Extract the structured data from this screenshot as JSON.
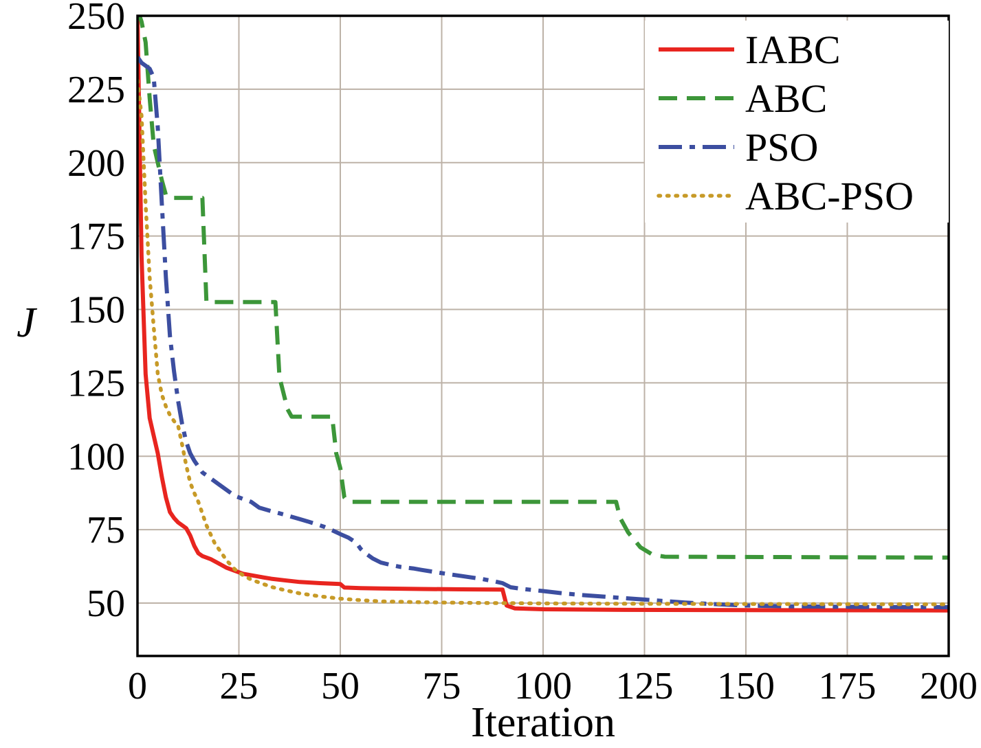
{
  "figure": {
    "background": "#ffffff"
  },
  "chart_data": {
    "type": "line",
    "title": "",
    "xlabel": "Iteration",
    "ylabel": "J",
    "xlim": [
      0,
      200
    ],
    "ylim": [
      32,
      250
    ],
    "x_ticks": [
      0,
      25,
      50,
      75,
      100,
      125,
      150,
      175,
      200
    ],
    "y_ticks": [
      50,
      75,
      100,
      125,
      150,
      175,
      200,
      225,
      250
    ],
    "grid": true,
    "grid_color": "#bdb2a7",
    "axis_color": "#000000",
    "legend_position": "top-right",
    "series": [
      {
        "name": "IABC",
        "color": "#e8251f",
        "style": "solid",
        "points": [
          [
            0,
            250
          ],
          [
            1,
            168
          ],
          [
            2,
            128
          ],
          [
            3,
            113
          ],
          [
            4,
            107
          ],
          [
            5,
            101
          ],
          [
            6,
            93
          ],
          [
            7,
            86
          ],
          [
            8,
            81
          ],
          [
            9,
            79
          ],
          [
            10,
            77.5
          ],
          [
            12,
            75.5
          ],
          [
            13,
            73
          ],
          [
            14,
            69.5
          ],
          [
            15,
            67
          ],
          [
            16,
            66
          ],
          [
            18,
            65
          ],
          [
            20,
            63.5
          ],
          [
            22,
            62
          ],
          [
            24,
            61
          ],
          [
            26,
            60
          ],
          [
            28,
            59.5
          ],
          [
            30,
            59
          ],
          [
            33,
            58.3
          ],
          [
            36,
            57.8
          ],
          [
            40,
            57.2
          ],
          [
            45,
            56.8
          ],
          [
            50,
            56.5
          ],
          [
            51,
            55.3
          ],
          [
            55,
            55.1
          ],
          [
            60,
            55
          ],
          [
            70,
            54.8
          ],
          [
            80,
            54.7
          ],
          [
            90,
            54.6
          ],
          [
            91,
            49.2
          ],
          [
            93,
            48.2
          ],
          [
            100,
            47.9
          ],
          [
            120,
            47.7
          ],
          [
            150,
            47.6
          ],
          [
            200,
            47.5
          ]
        ]
      },
      {
        "name": "ABC",
        "color": "#3c9639",
        "style": "dashed",
        "points": [
          [
            0,
            252
          ],
          [
            1,
            248
          ],
          [
            2,
            241
          ],
          [
            3,
            222
          ],
          [
            4,
            206
          ],
          [
            5,
            200
          ],
          [
            6,
            194
          ],
          [
            7,
            189
          ],
          [
            8,
            188
          ],
          [
            16,
            188
          ],
          [
            17,
            152.5
          ],
          [
            34,
            152.5
          ],
          [
            35,
            127
          ],
          [
            37,
            116
          ],
          [
            38,
            113.5
          ],
          [
            48,
            113.5
          ],
          [
            49,
            101
          ],
          [
            50,
            96
          ],
          [
            51,
            86
          ],
          [
            52,
            84.5
          ],
          [
            118,
            84.5
          ],
          [
            119,
            79
          ],
          [
            121,
            74
          ],
          [
            124,
            69
          ],
          [
            127,
            66.5
          ],
          [
            130,
            65.8
          ],
          [
            200,
            65.5
          ]
        ]
      },
      {
        "name": "PSO",
        "color": "#3c4ea0",
        "style": "dashdot",
        "points": [
          [
            0,
            236
          ],
          [
            1,
            234
          ],
          [
            2,
            233
          ],
          [
            3,
            232
          ],
          [
            4,
            229
          ],
          [
            5,
            212
          ],
          [
            6,
            186
          ],
          [
            7,
            161
          ],
          [
            8,
            141
          ],
          [
            9,
            129
          ],
          [
            10,
            119
          ],
          [
            11,
            111
          ],
          [
            12,
            105
          ],
          [
            13,
            101
          ],
          [
            14,
            98.5
          ],
          [
            15,
            96.5
          ],
          [
            16,
            94.5
          ],
          [
            18,
            92.5
          ],
          [
            20,
            90.5
          ],
          [
            22,
            88.5
          ],
          [
            24,
            86.5
          ],
          [
            26,
            85.5
          ],
          [
            28,
            84.5
          ],
          [
            30,
            82.5
          ],
          [
            33,
            81.3
          ],
          [
            36,
            80.2
          ],
          [
            38,
            79.4
          ],
          [
            40,
            78.6
          ],
          [
            42,
            77.8
          ],
          [
            44,
            76.9
          ],
          [
            46,
            76
          ],
          [
            48,
            74.8
          ],
          [
            50,
            73.5
          ],
          [
            52,
            72.3
          ],
          [
            54,
            70.5
          ],
          [
            55,
            68.5
          ],
          [
            56,
            67.2
          ],
          [
            58,
            65.2
          ],
          [
            60,
            63.8
          ],
          [
            63,
            62.8
          ],
          [
            65,
            62.3
          ],
          [
            68,
            61.8
          ],
          [
            70,
            61.3
          ],
          [
            75,
            60.2
          ],
          [
            80,
            59.2
          ],
          [
            85,
            58.2
          ],
          [
            88,
            57.4
          ],
          [
            90,
            56.8
          ],
          [
            92,
            55.4
          ],
          [
            95,
            54.8
          ],
          [
            100,
            54.1
          ],
          [
            105,
            53.3
          ],
          [
            110,
            52.7
          ],
          [
            115,
            52.2
          ],
          [
            120,
            51.7
          ],
          [
            125,
            51.2
          ],
          [
            130,
            50.7
          ],
          [
            135,
            50.2
          ],
          [
            140,
            49.8
          ],
          [
            150,
            49.2
          ],
          [
            160,
            48.9
          ],
          [
            170,
            48.8
          ],
          [
            180,
            48.7
          ],
          [
            200,
            48.6
          ]
        ]
      },
      {
        "name": "ABC-PSO",
        "color": "#c79a27",
        "style": "dotted",
        "points": [
          [
            0,
            228
          ],
          [
            1,
            216
          ],
          [
            2,
            186
          ],
          [
            3,
            161
          ],
          [
            4,
            144
          ],
          [
            5,
            128
          ],
          [
            6,
            121
          ],
          [
            7,
            117
          ],
          [
            8,
            114
          ],
          [
            9,
            112
          ],
          [
            10,
            110.5
          ],
          [
            11,
            104
          ],
          [
            12,
            97
          ],
          [
            13,
            91
          ],
          [
            14,
            87.5
          ],
          [
            15,
            84.5
          ],
          [
            16,
            80.5
          ],
          [
            17,
            76.5
          ],
          [
            18,
            73.5
          ],
          [
            19,
            70.5
          ],
          [
            20,
            68.5
          ],
          [
            22,
            64.5
          ],
          [
            24,
            61.5
          ],
          [
            26,
            59.5
          ],
          [
            28,
            58
          ],
          [
            30,
            57
          ],
          [
            33,
            55.5
          ],
          [
            36,
            54.5
          ],
          [
            40,
            53.3
          ],
          [
            45,
            52.3
          ],
          [
            50,
            51.5
          ],
          [
            55,
            51
          ],
          [
            60,
            50.6
          ],
          [
            70,
            50.3
          ],
          [
            80,
            50.1
          ],
          [
            100,
            49.9
          ],
          [
            120,
            49.8
          ],
          [
            150,
            49.7
          ],
          [
            200,
            49.6
          ]
        ]
      }
    ]
  }
}
